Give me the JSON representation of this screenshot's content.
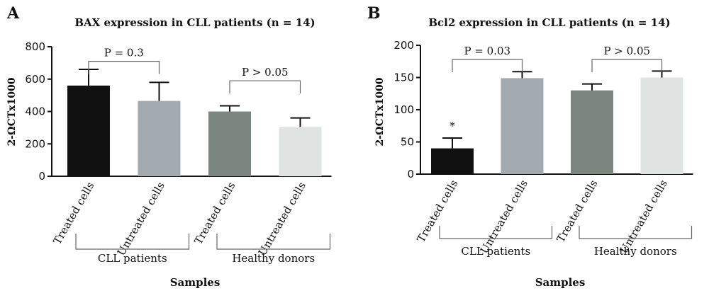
{
  "chart_data": [
    {
      "type": "bar",
      "panel": "A",
      "title": "BAX expression in CLL patients (n = 14)",
      "ylabel": "2-ΩCTx1000",
      "xlabel": "Samples",
      "ylim": [
        0,
        800
      ],
      "yticks": [
        "0",
        "200",
        "400",
        "600",
        "800"
      ],
      "categories": [
        "Treated cells",
        "Untreated cells",
        "Treated cells",
        "Untreated cells"
      ],
      "values": [
        560,
        465,
        400,
        305
      ],
      "errors": [
        100,
        115,
        35,
        55
      ],
      "colors": [
        "#111111",
        "#a3aaaf",
        "#7b8681",
        "#dfe4e2"
      ],
      "groups": [
        {
          "label": "CLL patients",
          "from": 0,
          "to": 1
        },
        {
          "label": "Healthy donors",
          "from": 2,
          "to": 3
        }
      ],
      "comparisons": [
        {
          "label": "P = 0.3",
          "from": 0,
          "to": 1,
          "y": 710
        },
        {
          "label": "P > 0.05",
          "from": 2,
          "to": 3,
          "y": 590
        }
      ],
      "markers": []
    },
    {
      "type": "bar",
      "panel": "B",
      "title": "Bcl2 expression in CLL patients (n = 14)",
      "ylabel": "2-ΩCTx1000",
      "xlabel": "Samples",
      "ylim": [
        0,
        200
      ],
      "yticks": [
        "0",
        "50",
        "100",
        "150",
        "200"
      ],
      "categories": [
        "Treated cells",
        "Untreated cells",
        "Treated cells",
        "Untreated cells"
      ],
      "values": [
        40,
        149,
        130,
        150
      ],
      "errors": [
        16,
        10,
        10,
        10
      ],
      "colors": [
        "#111111",
        "#a3aaaf",
        "#7b8681",
        "#dfe4e2"
      ],
      "groups": [
        {
          "label": "CLL patients",
          "from": 0,
          "to": 1
        },
        {
          "label": "Healthy donors",
          "from": 2,
          "to": 3
        }
      ],
      "comparisons": [
        {
          "label": "P = 0.03",
          "from": 0,
          "to": 1,
          "y": 178
        },
        {
          "label": "P > 0.05",
          "from": 2,
          "to": 3,
          "y": 178
        }
      ],
      "markers": [
        {
          "bar": 0,
          "text": "*"
        }
      ]
    }
  ]
}
